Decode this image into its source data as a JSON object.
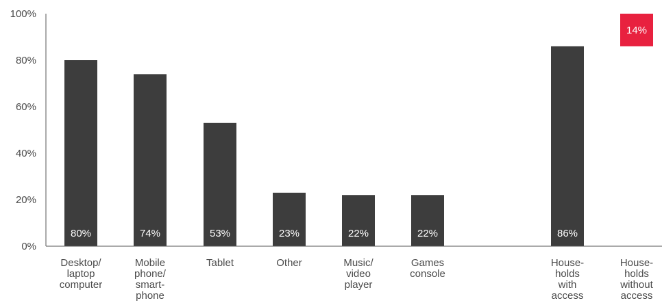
{
  "chart_data": {
    "type": "bar",
    "title": "",
    "xlabel": "",
    "ylabel": "",
    "ylim": [
      0,
      100
    ],
    "yticks": [
      "0%",
      "20%",
      "40%",
      "60%",
      "80%",
      "100%"
    ],
    "yticks_values": [
      0,
      20,
      40,
      60,
      80,
      100
    ],
    "grid": false,
    "bars": [
      {
        "category": [
          "Desktop/",
          "laptop",
          "computer"
        ],
        "value": 80,
        "label": "80%",
        "color": "#3d3d3d",
        "stack_base": 0
      },
      {
        "category": [
          "Mobile",
          "phone/",
          "smart-",
          "phone"
        ],
        "value": 74,
        "label": "74%",
        "color": "#3d3d3d",
        "stack_base": 0
      },
      {
        "category": [
          "Tablet"
        ],
        "value": 53,
        "label": "53%",
        "color": "#3d3d3d",
        "stack_base": 0
      },
      {
        "category": [
          "Other"
        ],
        "value": 23,
        "label": "23%",
        "color": "#3d3d3d",
        "stack_base": 0
      },
      {
        "category": [
          "Music/",
          "video",
          "player"
        ],
        "value": 22,
        "label": "22%",
        "color": "#3d3d3d",
        "stack_base": 0
      },
      {
        "category": [
          "Games",
          "console"
        ],
        "value": 22,
        "label": "22%",
        "color": "#3d3d3d",
        "stack_base": 0
      },
      {
        "category": [
          "House-",
          "holds",
          "with",
          "access"
        ],
        "value": 86,
        "label": "86%",
        "color": "#3d3d3d",
        "stack_base": 0
      },
      {
        "category": [
          "House-",
          "holds",
          "without",
          "access"
        ],
        "value": 14,
        "label": "14%",
        "color": "#e8213f",
        "stack_base": 86
      }
    ]
  }
}
